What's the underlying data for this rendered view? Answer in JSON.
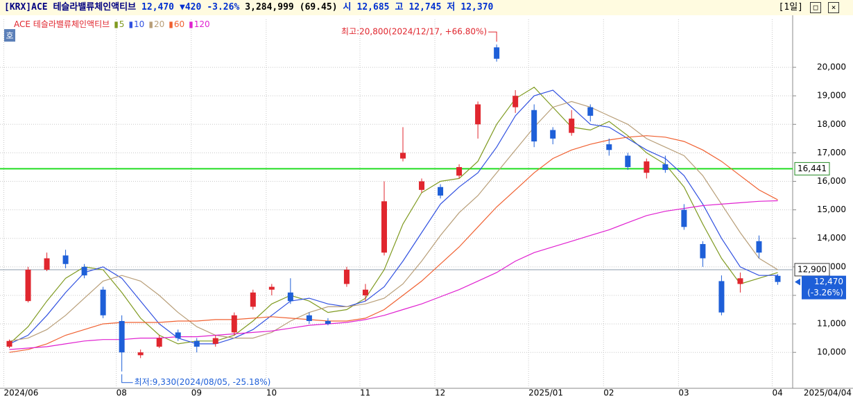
{
  "header": {
    "name": "[KRX]ACE 테슬라밸류체인액티브",
    "price": "12,470",
    "change": "▼420",
    "change_pct": "-3.26%",
    "volume": "3,284,999",
    "volume_ratio": "(69.45)",
    "open_label": "시",
    "open": "12,685",
    "high_label": "고",
    "high": "12,745",
    "low_label": "저",
    "low": "12,370",
    "period": "[1일]",
    "button": "호"
  },
  "chart_data": {
    "type": "candlestick",
    "legend": {
      "name": "ACE 테슬라밸류체인액티브"
    },
    "categories": [
      "2024/06",
      null,
      null,
      null,
      null,
      null,
      "08",
      null,
      null,
      null,
      "09",
      null,
      null,
      null,
      "10",
      null,
      null,
      null,
      null,
      "11",
      null,
      null,
      null,
      "12",
      null,
      null,
      null,
      null,
      "2025/01",
      null,
      null,
      null,
      "02",
      null,
      null,
      null,
      "03",
      null,
      null,
      null,
      null,
      "04"
    ],
    "cursor_label": "2025/04/04",
    "open": [
      10200,
      11800,
      12900,
      13400,
      13000,
      12200,
      11100,
      9900,
      10200,
      10700,
      10400,
      10300,
      10700,
      11600,
      12200,
      12100,
      11300,
      11100,
      12400,
      12000,
      13500,
      16800,
      15700,
      15800,
      16200,
      18000,
      20700,
      18600,
      18500,
      17800,
      17700,
      18600,
      17300,
      16900,
      16300,
      16600,
      15000,
      13800,
      12500,
      12400,
      13900,
      12685
    ],
    "high": [
      10450,
      13000,
      13500,
      13600,
      13100,
      12300,
      11300,
      10100,
      10600,
      10800,
      10500,
      10600,
      11400,
      12200,
      12400,
      12600,
      11400,
      11200,
      13000,
      12400,
      16000,
      17900,
      16100,
      15900,
      16600,
      18800,
      20800,
      19200,
      18700,
      17900,
      18500,
      18700,
      17500,
      17000,
      16800,
      16900,
      15200,
      13900,
      12700,
      12800,
      14100,
      12745
    ],
    "low": [
      10150,
      11750,
      12850,
      12950,
      12600,
      11200,
      9330,
      9800,
      10150,
      10400,
      10000,
      10200,
      10600,
      11500,
      12000,
      11700,
      11000,
      10950,
      12300,
      11800,
      13400,
      16700,
      15600,
      15400,
      16100,
      17500,
      20200,
      18400,
      17200,
      17300,
      17600,
      18100,
      16900,
      16400,
      16100,
      16300,
      14300,
      13000,
      11300,
      12100,
      13300,
      12370
    ],
    "close": [
      10400,
      12900,
      13300,
      13100,
      12700,
      11300,
      10000,
      10000,
      10500,
      10500,
      10200,
      10500,
      11300,
      12100,
      12300,
      11800,
      11100,
      11000,
      12900,
      12200,
      15300,
      17000,
      16000,
      15500,
      16500,
      18700,
      20300,
      19000,
      17400,
      17500,
      18200,
      18300,
      17100,
      16500,
      16700,
      16400,
      14400,
      13300,
      11400,
      12600,
      13500,
      12470
    ],
    "up_color": "#e0262e",
    "down_color": "#1e5fd8",
    "ma": [
      {
        "name": "5",
        "color": "#7f9a20",
        "values": [
          10300,
          10900,
          11800,
          12600,
          13000,
          12900,
          12100,
          11200,
          10600,
          10300,
          10400,
          10400,
          10600,
          11100,
          11700,
          12000,
          11800,
          11400,
          11500,
          11900,
          12900,
          14500,
          15600,
          16000,
          16100,
          16700,
          18000,
          18900,
          19300,
          18600,
          17900,
          17800,
          18100,
          17600,
          17000,
          16600,
          15800,
          14500,
          13300,
          12400,
          12600,
          12800
        ]
      },
      {
        "name": "10",
        "color": "#3050e0",
        "values": [
          10300,
          10600,
          11300,
          12100,
          12800,
          13000,
          12600,
          11800,
          11000,
          10500,
          10300,
          10300,
          10500,
          10800,
          11300,
          11800,
          11900,
          11700,
          11600,
          11800,
          12300,
          13200,
          14200,
          15200,
          15800,
          16300,
          17200,
          18300,
          19000,
          19200,
          18600,
          18000,
          17900,
          17500,
          17100,
          16800,
          16200,
          15200,
          14000,
          13000,
          12700,
          12700
        ]
      },
      {
        "name": "20",
        "color": "#b89e78",
        "values": [
          10400,
          10500,
          10800,
          11300,
          11900,
          12500,
          12700,
          12500,
          12000,
          11400,
          10900,
          10600,
          10500,
          10500,
          10700,
          11100,
          11400,
          11600,
          11600,
          11700,
          11900,
          12400,
          13200,
          14100,
          14900,
          15500,
          16300,
          17100,
          17900,
          18600,
          18800,
          18600,
          18300,
          18000,
          17500,
          17200,
          16900,
          16200,
          15200,
          14200,
          13300,
          12900
        ]
      },
      {
        "name": "60",
        "color": "#f06030",
        "values": [
          10000,
          10100,
          10300,
          10600,
          10800,
          11000,
          11050,
          11050,
          11050,
          11100,
          11100,
          11150,
          11150,
          11200,
          11250,
          11200,
          11150,
          11100,
          11100,
          11200,
          11500,
          12000,
          12500,
          13100,
          13700,
          14400,
          15100,
          15700,
          16300,
          16800,
          17100,
          17300,
          17450,
          17550,
          17600,
          17550,
          17400,
          17100,
          16700,
          16200,
          15700,
          15350
        ]
      },
      {
        "name": "120",
        "color": "#e020d0",
        "values": [
          10100,
          10150,
          10200,
          10300,
          10400,
          10450,
          10450,
          10500,
          10500,
          10550,
          10550,
          10600,
          10650,
          10700,
          10750,
          10850,
          10950,
          11000,
          11050,
          11150,
          11300,
          11500,
          11700,
          11950,
          12200,
          12500,
          12800,
          13200,
          13500,
          13700,
          13900,
          14100,
          14300,
          14550,
          14800,
          14950,
          15050,
          15150,
          15200,
          15250,
          15300,
          15320
        ]
      }
    ],
    "ylim": [
      8740,
      21680
    ],
    "yticks": [
      {
        "value": 10000,
        "label": "10,000"
      },
      {
        "value": 11000,
        "label": "11,000"
      },
      {
        "value": 12000,
        "label": "12,000"
      },
      {
        "value": 13000,
        "label": "13,000"
      },
      {
        "value": 14000,
        "label": "14,000"
      },
      {
        "value": 15000,
        "label": "15,000"
      },
      {
        "value": 16000,
        "label": "16,000"
      },
      {
        "value": 17000,
        "label": "17,000"
      },
      {
        "value": 18000,
        "label": "18,000"
      },
      {
        "value": 19000,
        "label": "19,000"
      },
      {
        "value": 20000,
        "label": "20,000"
      }
    ],
    "grid": true,
    "hlines": [
      {
        "value": 16441,
        "label": "16,441",
        "color": "#22dd22"
      },
      {
        "value": 12900,
        "label": "12,900",
        "color": "#8a9aa8"
      }
    ],
    "last": {
      "value": 12470,
      "label": "12,470",
      "change": "(-3.26%)"
    },
    "annotations": [
      {
        "text": "최고:20,800(2024/12/17, +66.80%)",
        "value": 20800
      },
      {
        "text": "최저:9,330(2024/08/05, -25.18%)",
        "value": 9330
      }
    ]
  }
}
